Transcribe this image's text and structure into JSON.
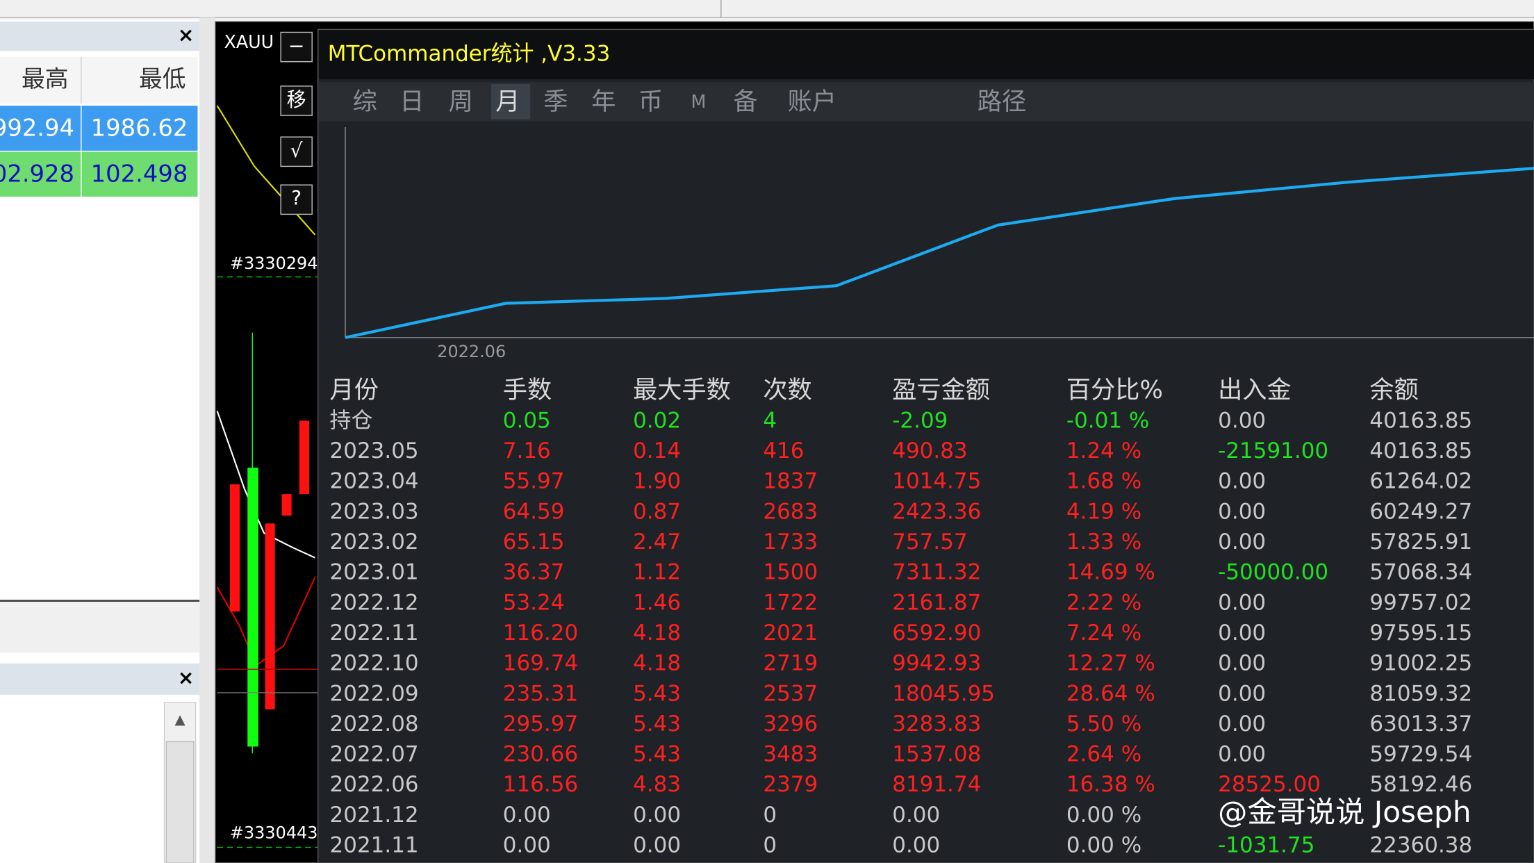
{
  "left_panel": {
    "headers": [
      "最高",
      "最低"
    ],
    "rows": [
      [
        "992.94",
        "1986.62"
      ],
      [
        "02.928",
        "102.498"
      ]
    ]
  },
  "chart_window": {
    "symbol": "XAUU",
    "buttons": [
      "−",
      "移",
      "√",
      "?"
    ],
    "order_labels": [
      "#3330294",
      "#3330443"
    ]
  },
  "panel": {
    "title": "MTCommander统计 ,V3.33",
    "tabs": [
      "综",
      "日",
      "周",
      "月",
      "季",
      "年",
      "币",
      "M",
      "备",
      "账户",
      "路径"
    ],
    "active_tab": 3,
    "graph_label": "2022.06",
    "table": {
      "headers": [
        "月份",
        "手数",
        "最大手数",
        "次数",
        "盈亏金额",
        "百分比%",
        "出入金",
        "余额"
      ],
      "rows": [
        {
          "tone": "green",
          "cells": [
            "持仓",
            "0.05",
            "0.02",
            "4",
            "-2.09",
            "-0.01 %",
            "0.00",
            "40163.85"
          ]
        },
        {
          "tone": "red",
          "cells": [
            "2023.05",
            "7.16",
            "0.14",
            "416",
            "490.83",
            "1.24 %",
            "-21591.00",
            "40163.85"
          ]
        },
        {
          "tone": "red",
          "cells": [
            "2023.04",
            "55.97",
            "1.90",
            "1837",
            "1014.75",
            "1.68 %",
            "0.00",
            "61264.02"
          ]
        },
        {
          "tone": "red",
          "cells": [
            "2023.03",
            "64.59",
            "0.87",
            "2683",
            "2423.36",
            "4.19 %",
            "0.00",
            "60249.27"
          ]
        },
        {
          "tone": "red",
          "cells": [
            "2023.02",
            "65.15",
            "2.47",
            "1733",
            "757.57",
            "1.33 %",
            "0.00",
            "57825.91"
          ]
        },
        {
          "tone": "red",
          "cells": [
            "2023.01",
            "36.37",
            "1.12",
            "1500",
            "7311.32",
            "14.69 %",
            "-50000.00",
            "57068.34"
          ]
        },
        {
          "tone": "red",
          "cells": [
            "2022.12",
            "53.24",
            "1.46",
            "1722",
            "2161.87",
            "2.22 %",
            "0.00",
            "99757.02"
          ]
        },
        {
          "tone": "red",
          "cells": [
            "2022.11",
            "116.20",
            "4.18",
            "2021",
            "6592.90",
            "7.24 %",
            "0.00",
            "97595.15"
          ]
        },
        {
          "tone": "red",
          "cells": [
            "2022.10",
            "169.74",
            "4.18",
            "2719",
            "9942.93",
            "12.27 %",
            "0.00",
            "91002.25"
          ]
        },
        {
          "tone": "red",
          "cells": [
            "2022.09",
            "235.31",
            "5.43",
            "2537",
            "18045.95",
            "28.64 %",
            "0.00",
            "81059.32"
          ]
        },
        {
          "tone": "red",
          "cells": [
            "2022.08",
            "295.97",
            "5.43",
            "3296",
            "3283.83",
            "5.50 %",
            "0.00",
            "63013.37"
          ]
        },
        {
          "tone": "red",
          "cells": [
            "2022.07",
            "230.66",
            "5.43",
            "3483",
            "1537.08",
            "2.64 %",
            "0.00",
            "59729.54"
          ]
        },
        {
          "tone": "red",
          "cells": [
            "2022.06",
            "116.56",
            "4.83",
            "2379",
            "8191.74",
            "16.38 %",
            "28525.00",
            "58192.46"
          ]
        },
        {
          "tone": "grey",
          "cells": [
            "2021.12",
            "0.00",
            "0.00",
            "0",
            "0.00",
            "0.00 %"
          ]
        },
        {
          "tone": "grey",
          "cells": [
            "2021.11",
            "0.00",
            "0.00",
            "0",
            "0.00",
            "0.00 %",
            "-1031.75",
            "22360.38"
          ]
        }
      ]
    }
  },
  "watermark": "@金哥说说 Joseph"
}
